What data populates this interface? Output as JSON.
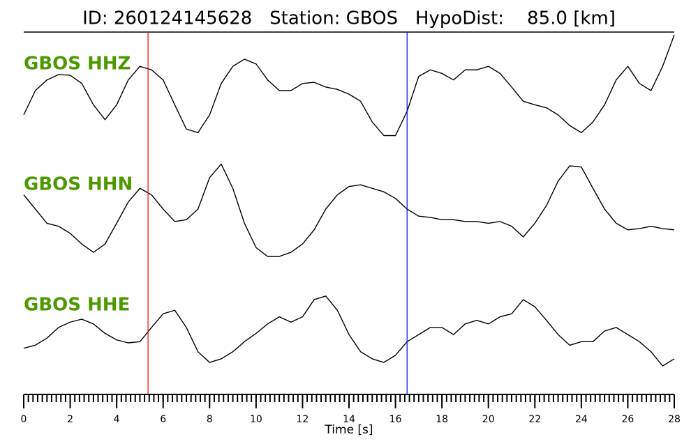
{
  "chart_data": {
    "type": "line",
    "title": "ID: 260124145628   Station: GBOS   HypoDist:    85.0 [km]",
    "xlabel": "Time [s]",
    "xlim": [
      0,
      28
    ],
    "xticks": [
      0,
      2,
      4,
      6,
      8,
      10,
      12,
      14,
      16,
      18,
      20,
      22,
      24,
      26,
      28
    ],
    "xminor_step": 0.2,
    "ylim": [
      -1,
      1
    ],
    "label_color": "#4c9a00",
    "picks": [
      {
        "value": 5.35,
        "color": "#ff0000"
      },
      {
        "value": 16.5,
        "color": "#0000ff"
      }
    ],
    "x": [
      0,
      0.5,
      1,
      1.5,
      2,
      2.5,
      3,
      3.5,
      4,
      4.5,
      5,
      5.5,
      6,
      6.5,
      7,
      7.5,
      8,
      8.5,
      9,
      9.5,
      10,
      10.5,
      11,
      11.5,
      12,
      12.5,
      13,
      13.5,
      14,
      14.5,
      15,
      15.5,
      16,
      16.5,
      17,
      17.5,
      18,
      18.5,
      19,
      19.5,
      20,
      20.5,
      21,
      21.5,
      22,
      22.5,
      23,
      23.5,
      24,
      24.5,
      25,
      25.5,
      26,
      26.5,
      27,
      27.5,
      28
    ],
    "series": [
      {
        "name": "GBOS HHZ",
        "color": "#000000",
        "values": [
          -0.41,
          0,
          0.18,
          0.27,
          0.26,
          0.12,
          -0.24,
          -0.49,
          -0.24,
          0.18,
          0.41,
          0.35,
          0.18,
          -0.24,
          -0.65,
          -0.71,
          -0.41,
          0.12,
          0.41,
          0.53,
          0.45,
          0.18,
          0,
          0,
          0.12,
          0.14,
          0.06,
          0.02,
          -0.06,
          -0.18,
          -0.53,
          -0.76,
          -0.76,
          -0.35,
          0.24,
          0.35,
          0.29,
          0.18,
          0.35,
          0.35,
          0.41,
          0.29,
          0.06,
          -0.18,
          -0.24,
          -0.29,
          -0.41,
          -0.59,
          -0.71,
          -0.53,
          -0.24,
          0.18,
          0.41,
          0.12,
          0,
          0.41,
          0.94
        ]
      },
      {
        "name": "GBOS HHN",
        "color": "#000000",
        "values": [
          0.24,
          0,
          -0.24,
          -0.29,
          -0.41,
          -0.59,
          -0.73,
          -0.59,
          -0.24,
          0.12,
          0.35,
          0.24,
          0,
          -0.21,
          -0.18,
          0,
          0.53,
          0.76,
          0.35,
          -0.24,
          -0.65,
          -0.8,
          -0.8,
          -0.73,
          -0.59,
          -0.35,
          0,
          0.24,
          0.38,
          0.41,
          0.35,
          0.29,
          0.18,
          0,
          -0.12,
          -0.14,
          -0.18,
          -0.18,
          -0.21,
          -0.21,
          -0.24,
          -0.21,
          -0.29,
          -0.47,
          -0.24,
          0.06,
          0.47,
          0.73,
          0.71,
          0.35,
          0,
          -0.24,
          -0.35,
          -0.33,
          -0.29,
          -0.33,
          -0.35
        ]
      },
      {
        "name": "GBOS HHE",
        "color": "#000000",
        "values": [
          -0.29,
          -0.24,
          -0.12,
          0.06,
          0.15,
          0.2,
          0.12,
          -0.04,
          -0.15,
          -0.2,
          -0.18,
          0.06,
          0.29,
          0.35,
          0.06,
          -0.35,
          -0.53,
          -0.47,
          -0.35,
          -0.18,
          -0.04,
          0.12,
          0.24,
          0.15,
          0.24,
          0.53,
          0.59,
          0.35,
          -0.06,
          -0.35,
          -0.47,
          -0.53,
          -0.41,
          -0.18,
          -0.06,
          0.06,
          0.06,
          -0.06,
          0.12,
          0.18,
          0.12,
          0.24,
          0.29,
          0.53,
          0.41,
          0.18,
          -0.06,
          -0.24,
          -0.18,
          -0.18,
          0,
          0.06,
          -0.06,
          -0.18,
          -0.35,
          -0.59,
          -0.47
        ]
      }
    ]
  }
}
